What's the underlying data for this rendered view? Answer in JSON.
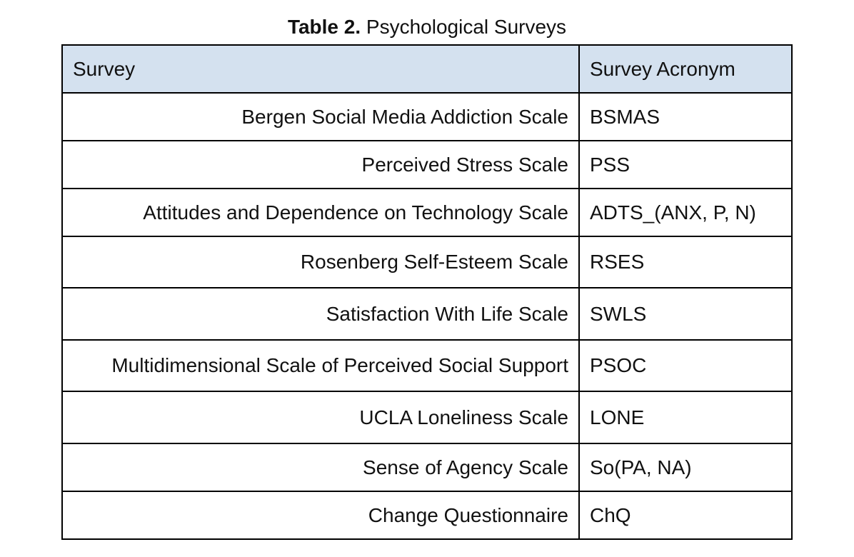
{
  "caption": {
    "label": "Table 2.",
    "title": "Psychological Surveys"
  },
  "table": {
    "headers": [
      "Survey",
      "Survey Acronym"
    ],
    "rows": [
      {
        "survey": "Bergen Social Media Addiction Scale",
        "acronym": "BSMAS"
      },
      {
        "survey": "Perceived Stress Scale",
        "acronym": "PSS"
      },
      {
        "survey": "Attitudes and Dependence on Technology Scale",
        "acronym": "ADTS_(ANX, P, N)"
      },
      {
        "survey": "Rosenberg Self-Esteem Scale",
        "acronym": "RSES"
      },
      {
        "survey": "Satisfaction With Life Scale",
        "acronym": "SWLS"
      },
      {
        "survey": "Multidimensional Scale of Perceived Social Support",
        "acronym": "PSOC"
      },
      {
        "survey": "UCLA Loneliness Scale",
        "acronym": "LONE"
      },
      {
        "survey": "Sense of Agency Scale",
        "acronym": "So(PA, NA)"
      },
      {
        "survey": "Change Questionnaire",
        "acronym": "ChQ"
      }
    ]
  },
  "colors": {
    "header_background": "#d4e1ef",
    "border": "#000000"
  }
}
